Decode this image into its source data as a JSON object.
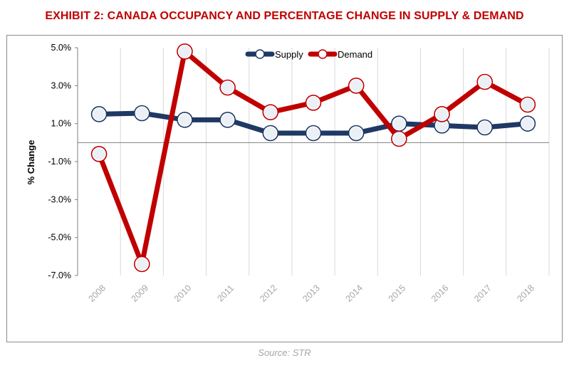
{
  "page": {
    "title": "EXHIBIT 2: CANADA OCCUPANCY AND PERCENTAGE CHANGE IN SUPPLY & DEMAND",
    "source": "Source: STR"
  },
  "chart_data": {
    "type": "line",
    "title": "EXHIBIT 2: CANADA OCCUPANCY AND PERCENTAGE CHANGE IN SUPPLY & DEMAND",
    "xlabel": "",
    "ylabel": "% Change",
    "categories": [
      "2008",
      "2009",
      "2010",
      "2011",
      "2012",
      "2013",
      "2014",
      "2015",
      "2016",
      "2017",
      "2018"
    ],
    "y_ticks": [
      "5.0%",
      "3.0%",
      "1.0%",
      "-1.0%",
      "-3.0%",
      "-5.0%",
      "-7.0%"
    ],
    "ylim": [
      -7,
      5
    ],
    "grid": "vertical",
    "legend_position": "top-center",
    "series": [
      {
        "name": "Supply",
        "color": "#1f3864",
        "values": [
          1.5,
          1.55,
          1.2,
          1.2,
          0.5,
          0.5,
          0.5,
          1.0,
          0.9,
          0.8,
          1.0
        ]
      },
      {
        "name": "Demand",
        "color": "#c00000",
        "values": [
          -0.6,
          -6.4,
          4.8,
          2.9,
          1.6,
          2.1,
          3.0,
          0.2,
          1.5,
          3.2,
          2.0
        ]
      }
    ]
  }
}
